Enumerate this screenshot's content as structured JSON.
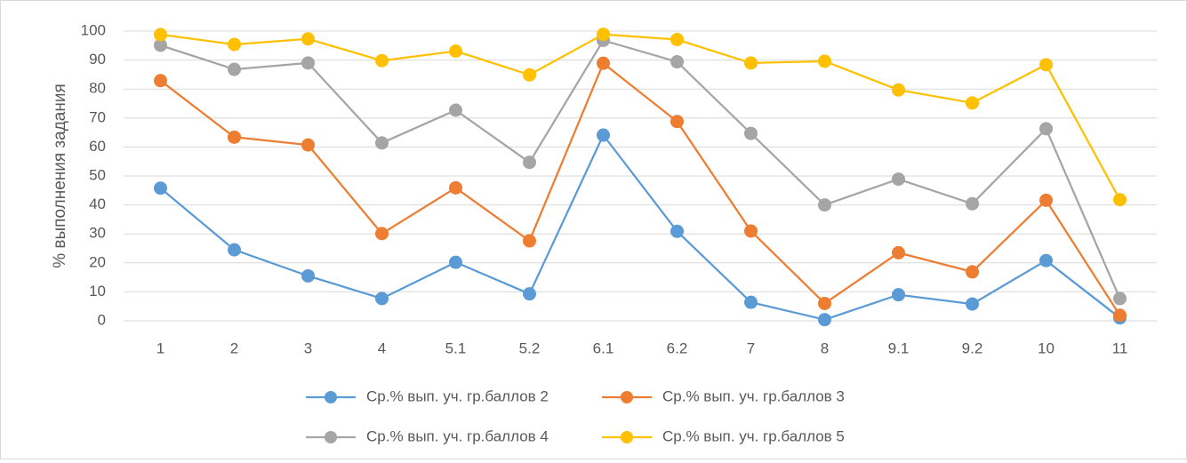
{
  "chart_data": {
    "type": "line",
    "title": "",
    "xlabel": "",
    "ylabel": "% выполнения задания",
    "ylim": [
      0,
      100
    ],
    "yticks": [
      0,
      10,
      20,
      30,
      40,
      50,
      60,
      70,
      80,
      90,
      100
    ],
    "grid": "horizontal",
    "legend_position": "bottom",
    "categories": [
      "1",
      "2",
      "3",
      "4",
      "5.1",
      "5.2",
      "6.1",
      "6.2",
      "7",
      "8",
      "9.1",
      "9.2",
      "10",
      "11"
    ],
    "series": [
      {
        "name": "Ср.% вып. уч. гр.баллов 2",
        "color": "#5b9bd5",
        "values": [
          45.8,
          24.5,
          15.5,
          7.7,
          20.2,
          9.3,
          64.1,
          30.9,
          6.4,
          0.4,
          9.0,
          5.8,
          20.8,
          1.0
        ]
      },
      {
        "name": "Ср.% вып. уч. гр.баллов 3",
        "color": "#ed7d31",
        "values": [
          82.9,
          63.4,
          60.7,
          30.1,
          45.9,
          27.6,
          88.9,
          68.8,
          31.0,
          6.0,
          23.5,
          16.9,
          41.6,
          1.9
        ]
      },
      {
        "name": "Ср.% вып. уч. гр.баллов 4",
        "color": "#a5a5a5",
        "values": [
          95.1,
          86.8,
          89.0,
          61.4,
          72.7,
          54.7,
          96.8,
          89.4,
          64.7,
          40.0,
          48.9,
          40.4,
          66.3,
          7.7
        ]
      },
      {
        "name": "Ср.% вып. уч. гр.баллов 5",
        "color": "#ffc000",
        "values": [
          98.8,
          95.4,
          97.3,
          89.8,
          93.1,
          84.9,
          98.9,
          97.1,
          89.0,
          89.6,
          79.7,
          75.2,
          88.4,
          41.8
        ]
      }
    ]
  }
}
